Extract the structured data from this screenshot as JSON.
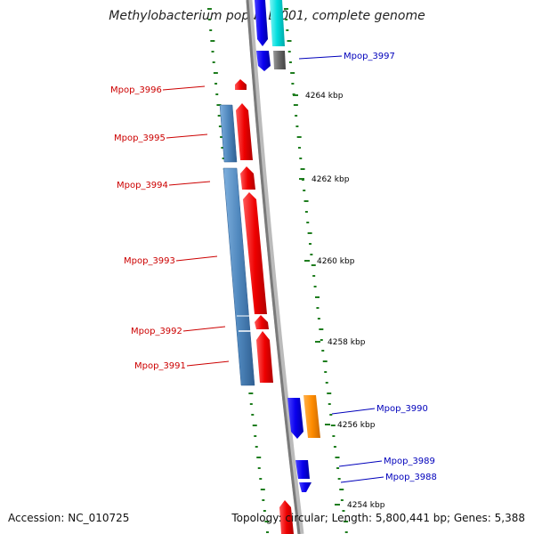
{
  "title": "Methylobacterium populi BJ001, complete genome",
  "accession": "Accession: NC_010725",
  "topology": "Topology: circular; Length: 5,800,441 bp; Genes: 5,388",
  "colors": {
    "reverse_label": "#cc0000",
    "forward_label": "#0000bb",
    "red_cds": "#ee0000",
    "steel_blue": "#4f87bd",
    "blue_cds": "#0a00ee",
    "cyan": "#00dddd",
    "gray": "#666666",
    "orange": "#ff8c00",
    "tick_green": "#1e7d1e"
  },
  "ticks": [
    {
      "label": "4264 kbp"
    },
    {
      "label": "4262 kbp"
    },
    {
      "label": "4260 kbp"
    },
    {
      "label": "4258 kbp"
    },
    {
      "label": "4256 kbp"
    },
    {
      "label": "4254 kbp"
    }
  ],
  "genes_reverse": [
    {
      "label": "Mpop_3996"
    },
    {
      "label": "Mpop_3995"
    },
    {
      "label": "Mpop_3994"
    },
    {
      "label": "Mpop_3993"
    },
    {
      "label": "Mpop_3992"
    },
    {
      "label": "Mpop_3991"
    }
  ],
  "genes_forward": [
    {
      "label": "Mpop_3997"
    },
    {
      "label": "Mpop_3990"
    },
    {
      "label": "Mpop_3989"
    },
    {
      "label": "Mpop_3988"
    }
  ]
}
